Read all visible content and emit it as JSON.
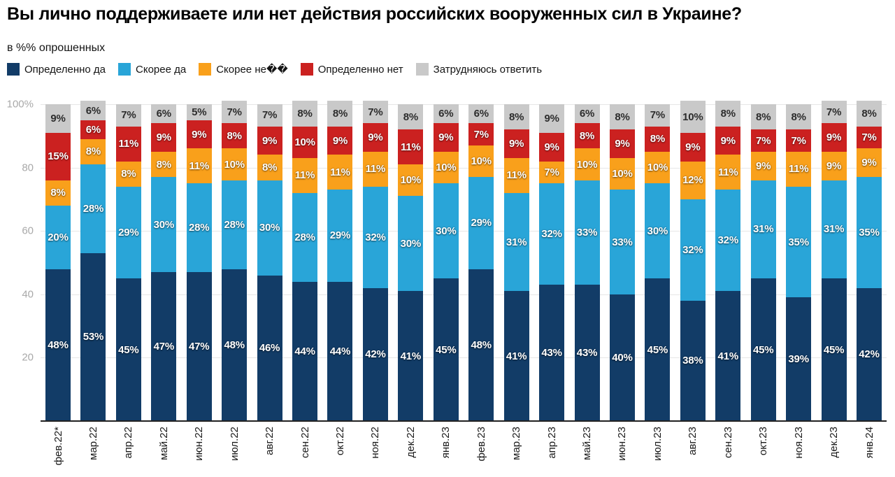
{
  "header": {
    "title": "Вы лично поддерживаете или нет действия российских вооруженных сил в Украине?",
    "subtitle": "в %% опрошенных"
  },
  "chart_data": {
    "type": "bar",
    "stacked": true,
    "title": "Вы лично поддерживаете или нет действия российских вооруженных сил в Украине?",
    "subtitle": "в %% опрошенных",
    "legend_position": "top",
    "grid": true,
    "ylim": [
      0,
      100
    ],
    "value_suffix": "%",
    "yticks": [
      {
        "value": 100,
        "label": "100%"
      },
      {
        "value": 80,
        "label": "80"
      },
      {
        "value": 60,
        "label": "60"
      },
      {
        "value": 40,
        "label": "40"
      },
      {
        "value": 20,
        "label": "20"
      }
    ],
    "categories": [
      "фев.22*",
      "мар.22",
      "апр.22",
      "май.22",
      "июн.22",
      "июл.22",
      "авг.22",
      "сен.22",
      "окт.22",
      "ноя.22",
      "дек.22",
      "янв.23",
      "фев.23",
      "мар.23",
      "апр.23",
      "май.23",
      "июн.23",
      "июл.23",
      "авг.23",
      "сен.23",
      "окт.23",
      "ноя.23",
      "дек.23",
      "янв.24"
    ],
    "series": [
      {
        "name": "Определенно да",
        "color": "#123c67",
        "value_label_color": "#ffffff",
        "values": [
          48,
          53,
          45,
          47,
          47,
          48,
          46,
          44,
          44,
          42,
          41,
          45,
          48,
          41,
          43,
          43,
          40,
          45,
          38,
          41,
          45,
          39,
          45,
          42
        ]
      },
      {
        "name": "Скорее да",
        "color": "#29a5d8",
        "value_label_color": "#ffffff",
        "values": [
          20,
          28,
          29,
          30,
          28,
          28,
          30,
          28,
          29,
          32,
          30,
          30,
          29,
          31,
          32,
          33,
          33,
          30,
          32,
          32,
          31,
          35,
          31,
          35
        ]
      },
      {
        "name": "Скорее не��",
        "color": "#f9a01b",
        "value_label_color": "#ffffff",
        "values": [
          8,
          8,
          8,
          8,
          11,
          10,
          8,
          11,
          11,
          11,
          10,
          10,
          10,
          11,
          7,
          10,
          10,
          10,
          12,
          11,
          9,
          11,
          9,
          9
        ]
      },
      {
        "name": "Определенно нет",
        "color": "#cb2120",
        "value_label_color": "#ffffff",
        "values": [
          15,
          6,
          11,
          9,
          9,
          8,
          9,
          10,
          9,
          9,
          11,
          9,
          7,
          9,
          9,
          8,
          9,
          8,
          9,
          9,
          7,
          7,
          9,
          7
        ]
      },
      {
        "name": "Затрудняюсь ответить",
        "color": "#c9c9c9",
        "value_label_color": "#2d2d2d",
        "values": [
          9,
          6,
          7,
          6,
          5,
          7,
          7,
          8,
          8,
          7,
          8,
          6,
          6,
          8,
          9,
          6,
          8,
          7,
          10,
          8,
          8,
          8,
          7,
          8
        ]
      }
    ]
  }
}
